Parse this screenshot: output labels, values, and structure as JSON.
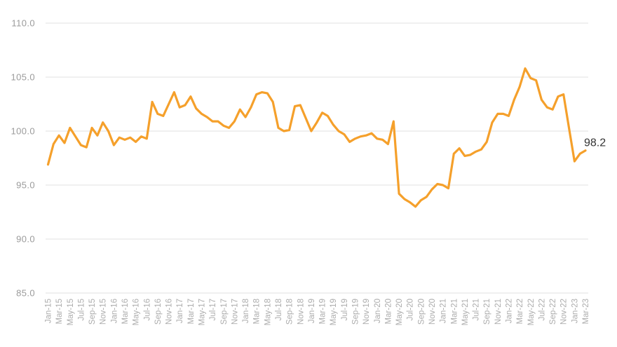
{
  "chart_data": {
    "type": "line",
    "title": "",
    "xlabel": "",
    "ylabel": "",
    "legend": false,
    "grid": true,
    "ylim": [
      85.0,
      110.0
    ],
    "y_ticks": [
      85,
      90,
      95,
      100,
      105,
      110
    ],
    "y_tick_labels": [
      "85.0",
      "90.0",
      "95.0",
      "100.0",
      "105.0",
      "110.0"
    ],
    "x_tick_every": 2,
    "x": [
      "Jan-15",
      "Feb-15",
      "Mar-15",
      "Apr-15",
      "May-15",
      "Jun-15",
      "Jul-15",
      "Aug-15",
      "Sep-15",
      "Oct-15",
      "Nov-15",
      "Dec-15",
      "Jan-16",
      "Feb-16",
      "Mar-16",
      "Apr-16",
      "May-16",
      "Jun-16",
      "Jul-16",
      "Aug-16",
      "Sep-16",
      "Oct-16",
      "Nov-16",
      "Dec-16",
      "Jan-17",
      "Feb-17",
      "Mar-17",
      "Apr-17",
      "May-17",
      "Jun-17",
      "Jul-17",
      "Aug-17",
      "Sep-17",
      "Oct-17",
      "Nov-17",
      "Dec-17",
      "Jan-18",
      "Feb-18",
      "Mar-18",
      "Apr-18",
      "May-18",
      "Jun-18",
      "Jul-18",
      "Aug-18",
      "Sep-18",
      "Oct-18",
      "Nov-18",
      "Dec-18",
      "Jan-19",
      "Feb-19",
      "Mar-19",
      "Apr-19",
      "May-19",
      "Jun-19",
      "Jul-19",
      "Aug-19",
      "Sep-19",
      "Oct-19",
      "Nov-19",
      "Dec-19",
      "Jan-20",
      "Feb-20",
      "Mar-20",
      "Apr-20",
      "May-20",
      "Jun-20",
      "Jul-20",
      "Aug-20",
      "Sep-20",
      "Oct-20",
      "Nov-20",
      "Dec-20",
      "Jan-21",
      "Feb-21",
      "Mar-21",
      "Apr-21",
      "May-21",
      "Jun-21",
      "Jul-21",
      "Aug-21",
      "Sep-21",
      "Oct-21",
      "Nov-21",
      "Dec-21",
      "Jan-22",
      "Feb-22",
      "Mar-22",
      "Apr-22",
      "May-22",
      "Jun-22",
      "Jul-22",
      "Aug-22",
      "Sep-22",
      "Oct-22",
      "Nov-22",
      "Dec-22",
      "Jan-23",
      "Feb-23",
      "Mar-23"
    ],
    "values": [
      96.9,
      98.8,
      99.6,
      98.9,
      100.3,
      99.5,
      98.7,
      98.5,
      100.3,
      99.6,
      100.8,
      100.0,
      98.7,
      99.4,
      99.2,
      99.4,
      99.0,
      99.5,
      99.3,
      102.7,
      101.6,
      101.4,
      102.5,
      103.6,
      102.2,
      102.4,
      103.2,
      102.1,
      101.6,
      101.3,
      100.9,
      100.9,
      100.5,
      100.3,
      100.9,
      102.0,
      101.3,
      102.2,
      103.4,
      103.6,
      103.5,
      102.7,
      100.3,
      100.0,
      100.1,
      102.3,
      102.4,
      101.2,
      100.0,
      100.8,
      101.7,
      101.4,
      100.6,
      100.0,
      99.7,
      99.0,
      99.3,
      99.5,
      99.6,
      99.8,
      99.3,
      99.2,
      98.8,
      100.9,
      94.2,
      93.7,
      93.4,
      93.0,
      93.6,
      93.9,
      94.6,
      95.1,
      95.0,
      94.7,
      97.9,
      98.4,
      97.7,
      97.8,
      98.1,
      98.3,
      99.0,
      100.8,
      101.6,
      101.6,
      101.4,
      102.9,
      104.1,
      105.8,
      104.9,
      104.7,
      102.9,
      102.2,
      102.0,
      103.2,
      103.4,
      100.3,
      97.2,
      97.9,
      98.2
    ],
    "end_label": "98.2",
    "colors": {
      "line": "#F5A02B",
      "grid": "#E2E2E2",
      "y_tick_label": "#9B9B9B",
      "x_tick_label": "#ACACAC",
      "end_label": "#333333",
      "background": "#FFFFFF"
    }
  }
}
